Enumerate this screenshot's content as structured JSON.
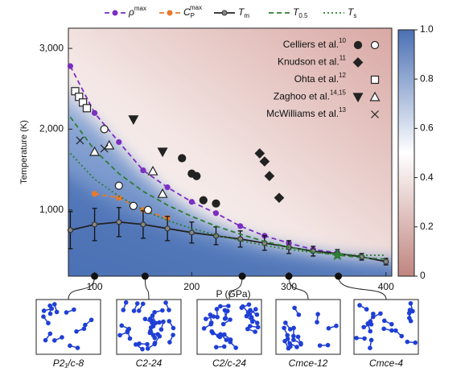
{
  "chart_data": {
    "type": "phase-diagram",
    "x_label": "P (GPa)",
    "y_label": "Temperature (K)",
    "xlim": [
      73,
      406
    ],
    "ylim": [
      180,
      3250
    ],
    "xticks": [
      100,
      200,
      300,
      400
    ],
    "yticks": [
      {
        "value": 1000,
        "label": "1,000"
      },
      {
        "value": 2000,
        "label": "2,000"
      },
      {
        "value": 3000,
        "label": "3,000"
      }
    ],
    "colorbar": {
      "lim": [
        0,
        1
      ],
      "ticks": [
        0,
        0.2,
        0.4,
        0.6,
        0.8,
        {
          "value": 1,
          "label": "1.0"
        }
      ]
    },
    "series": [
      {
        "name": "ρ",
        "sup": "max",
        "color": "#7a2fc0",
        "style": "dashed",
        "marker": true,
        "x": [
          75,
          100,
          125,
          150,
          175,
          200,
          225,
          250,
          275,
          300,
          325,
          350
        ],
        "values": [
          2780,
          2200,
          1840,
          1490,
          1280,
          1100,
          960,
          800,
          680,
          590,
          510,
          470
        ]
      },
      {
        "name": "C",
        "sub": "P",
        "sup": "max",
        "color": "#e8782a",
        "style": "dashed",
        "marker": true,
        "x": [
          100,
          125,
          150,
          175
        ],
        "values": [
          1200,
          1150,
          1000,
          900
        ]
      },
      {
        "name": "T",
        "sub": "m",
        "color": "#222222",
        "style": "solid",
        "marker": true,
        "x": [
          75,
          100,
          125,
          150,
          175,
          200,
          225,
          250,
          275,
          300,
          325,
          350,
          375,
          400
        ],
        "values": [
          750,
          820,
          850,
          820,
          770,
          720,
          680,
          640,
          590,
          540,
          490,
          460,
          420,
          360
        ],
        "errors": [
          230,
          200,
          180,
          170,
          150,
          130,
          110,
          100,
          90,
          80,
          60,
          50,
          40,
          40
        ]
      },
      {
        "name": "T",
        "sub": "0.5",
        "color": "#2e7d32",
        "style": "dashed",
        "marker": false,
        "x": [
          75,
          100,
          125,
          150,
          175,
          200,
          225,
          250,
          275,
          300,
          325,
          350,
          375,
          400
        ],
        "values": [
          2150,
          1740,
          1450,
          1230,
          1060,
          920,
          800,
          700,
          610,
          540,
          480,
          440,
          410,
          390
        ]
      },
      {
        "name": "T",
        "sub": "s",
        "color": "#2e7d32",
        "style": "dotted",
        "marker": false,
        "x": [
          75,
          100,
          125,
          150,
          175,
          200,
          225,
          250,
          275,
          300,
          325,
          350,
          375,
          400
        ],
        "values": [
          1700,
          1380,
          1170,
          1000,
          870,
          770,
          690,
          620,
          560,
          510,
          475,
          450,
          440,
          440
        ]
      }
    ],
    "experiments": [
      {
        "name": "Celliers et al.",
        "sup": "10",
        "groups": [
          {
            "marker": "circle",
            "filled": true,
            "x": [
              190,
              200,
              205,
              212,
              225
            ],
            "values": [
              1640,
              1450,
              1420,
              1120,
              1080
            ]
          },
          {
            "marker": "circle",
            "filled": false,
            "x": [
              110,
              125,
              140,
              155
            ],
            "values": [
              2000,
              1300,
              1050,
              1000
            ]
          }
        ]
      },
      {
        "name": "Knudson et al.",
        "sup": "11",
        "groups": [
          {
            "marker": "diamond",
            "filled": true,
            "x": [
              270,
              275,
              280,
              290
            ],
            "values": [
              1700,
              1600,
              1420,
              1150
            ]
          }
        ]
      },
      {
        "name": "Ohta et al.",
        "sup": "12",
        "groups": [
          {
            "marker": "square",
            "filled": false,
            "x": [
              80,
              84,
              88,
              92
            ],
            "values": [
              2470,
              2400,
              2330,
              2260
            ]
          }
        ]
      },
      {
        "name": "Zaghoo et al.",
        "sup": "14,15",
        "groups": [
          {
            "marker": "tri-down",
            "filled": true,
            "x": [
              140,
              170
            ],
            "values": [
              2120,
              1720
            ]
          },
          {
            "marker": "tri-up",
            "filled": false,
            "x": [
              100,
              115,
              160,
              170
            ],
            "values": [
              1720,
              1800,
              1480,
              1200
            ]
          }
        ]
      },
      {
        "name": "McWilliams et al.",
        "sup": "13",
        "groups": [
          {
            "marker": "cross",
            "filled": false,
            "x": [
              85,
              110
            ],
            "values": [
              1860,
              1760
            ]
          }
        ]
      }
    ],
    "triple_point": {
      "x": 350,
      "y": 440,
      "color": "#2e7d32"
    },
    "phases": [
      {
        "label": "P2₁/c-8",
        "pressure": 100
      },
      {
        "label": "C2-24",
        "pressure": 152
      },
      {
        "label": "C2/c-24",
        "pressure": 252
      },
      {
        "label": "Cmce-12",
        "pressure": 300
      },
      {
        "label": "Cmce-4",
        "pressure": 351
      }
    ]
  }
}
